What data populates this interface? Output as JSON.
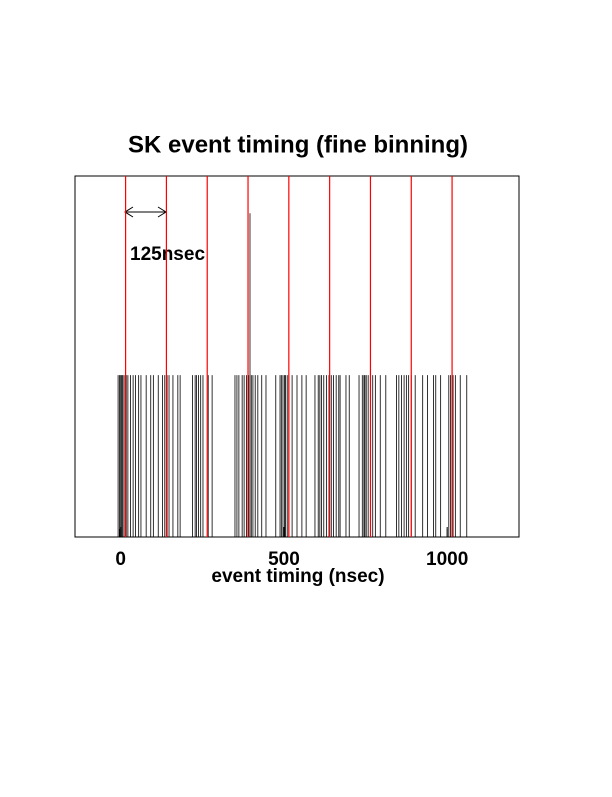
{
  "chart_data": {
    "type": "spikes",
    "title": "SK event timing (fine binning)",
    "x_label": "event timing (nsec)",
    "annotation": "125nsec",
    "color": "#000000",
    "vline_color": "#ff0000",
    "x": [
      -8,
      -4,
      -3,
      0,
      3,
      6,
      10,
      14,
      17,
      22,
      30,
      38,
      45,
      55,
      62,
      78,
      92,
      100,
      115,
      128,
      135,
      142,
      148,
      160,
      175,
      182,
      220,
      228,
      232,
      238,
      245,
      252,
      268,
      280,
      350,
      356,
      362,
      372,
      378,
      385,
      392,
      396,
      400,
      405,
      412,
      420,
      432,
      445,
      475,
      488,
      492,
      497,
      502,
      505,
      510,
      515,
      525,
      540,
      555,
      568,
      595,
      605,
      610,
      615,
      622,
      630,
      638,
      645,
      652,
      660,
      668,
      672,
      690,
      700,
      730,
      740,
      745,
      748,
      752,
      758,
      765,
      772,
      780,
      795,
      812,
      845,
      852,
      860,
      868,
      875,
      882,
      890,
      902,
      925,
      940,
      958,
      965,
      980,
      1000,
      1005,
      1010,
      1018,
      1025,
      1040,
      1060
    ],
    "values": [
      1,
      1,
      0.05,
      1,
      1,
      1,
      1,
      1,
      1,
      1,
      1,
      1,
      1,
      1,
      1,
      1,
      1,
      1,
      1,
      1,
      1,
      1,
      1,
      1,
      1,
      1,
      1,
      1,
      1,
      1,
      1,
      1,
      1,
      1,
      1,
      1,
      1,
      1,
      1,
      1,
      1,
      2,
      1,
      1,
      1,
      1,
      1,
      1,
      1,
      1,
      1,
      1,
      1,
      1,
      1,
      1,
      1,
      1,
      1,
      1,
      1,
      1,
      1,
      1,
      1,
      1,
      1,
      1,
      1,
      1,
      1,
      1,
      1,
      1,
      1,
      1,
      1,
      1,
      1,
      1,
      1,
      1,
      1,
      1,
      1,
      1,
      1,
      1,
      1,
      1,
      1,
      1,
      1,
      1,
      1,
      1,
      1,
      1,
      0.05,
      1,
      1,
      1,
      1,
      1,
      1
    ],
    "vlines": [
      15,
      140,
      265,
      390,
      515,
      640,
      765,
      890,
      1015
    ],
    "xlim": [
      -140,
      1220
    ],
    "ylim": [
      0,
      2.23
    ],
    "xticks": [
      0,
      500,
      1000
    ]
  }
}
